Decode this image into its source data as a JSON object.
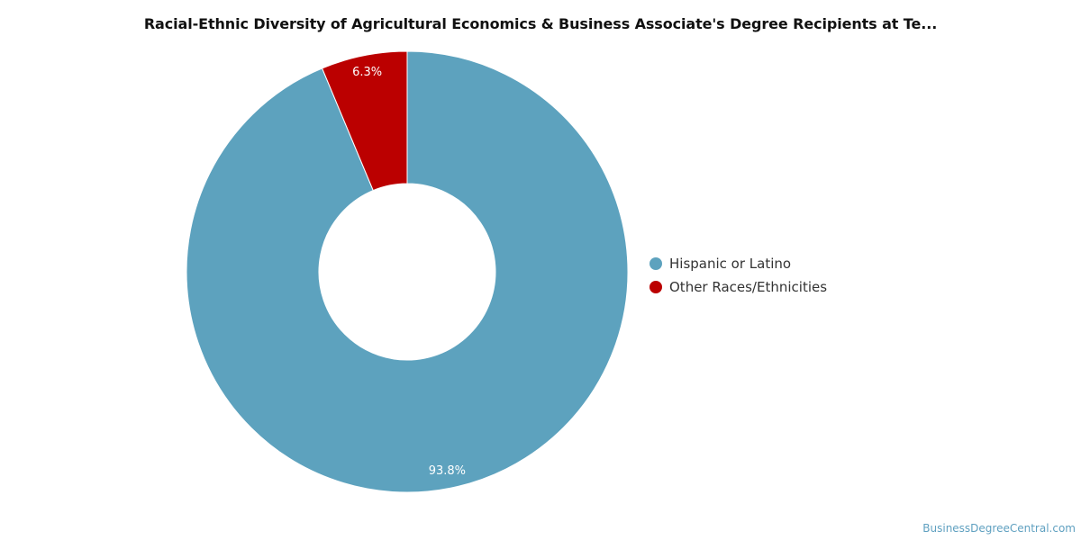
{
  "chart_data": {
    "type": "pie",
    "title": "Racial-Ethnic Diversity of Agricultural Economics & Business Associate's Degree Recipients at Te...",
    "categories": [
      "Hispanic or Latino",
      "Other Races/Ethnicities"
    ],
    "values": [
      93.8,
      6.3
    ],
    "value_labels": [
      "93.8%",
      "6.3%"
    ],
    "colors": [
      "#5da2be",
      "#bb0000"
    ],
    "donut": true,
    "legend_position": "right"
  },
  "watermark": "BusinessDegreeCentral.com"
}
